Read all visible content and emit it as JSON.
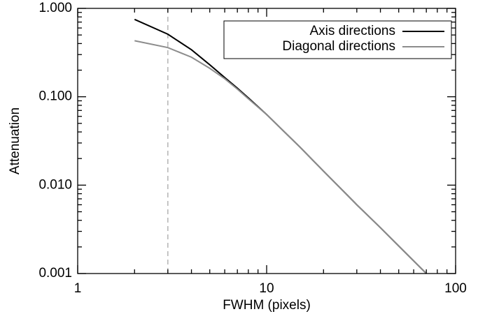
{
  "chart_data": {
    "type": "line",
    "xlabel": "FWHM (pixels)",
    "ylabel": "Attenuation",
    "x": [
      2,
      3,
      4,
      5,
      6,
      7,
      8,
      10,
      15,
      20,
      30,
      40,
      50,
      70
    ],
    "series": [
      {
        "name": "Axis directions",
        "color": "#000000",
        "values": [
          0.75,
          0.51,
          0.34,
          0.23,
          0.165,
          0.125,
          0.097,
          0.063,
          0.027,
          0.0144,
          0.006,
          0.0033,
          0.00205,
          0.001
        ]
      },
      {
        "name": "Diagonal directions",
        "color": "#8c8c8c",
        "values": [
          0.43,
          0.36,
          0.28,
          0.21,
          0.16,
          0.122,
          0.095,
          0.063,
          0.027,
          0.0144,
          0.006,
          0.0033,
          0.00205,
          0.001
        ]
      }
    ],
    "vline": {
      "x": 3,
      "color": "#b4b4b4"
    },
    "xlim": [
      1,
      100
    ],
    "ylim": [
      0.001,
      1
    ],
    "xticks": [
      1,
      10,
      100
    ],
    "yticks": [
      {
        "value": 1,
        "label": "1.000"
      },
      {
        "value": 0.1,
        "label": "0.100"
      },
      {
        "value": 0.01,
        "label": "0.010"
      },
      {
        "value": 0.001,
        "label": "0.001"
      }
    ],
    "xscale": "log",
    "yscale": "log",
    "minor_ticks": true,
    "legend": "upper right"
  }
}
